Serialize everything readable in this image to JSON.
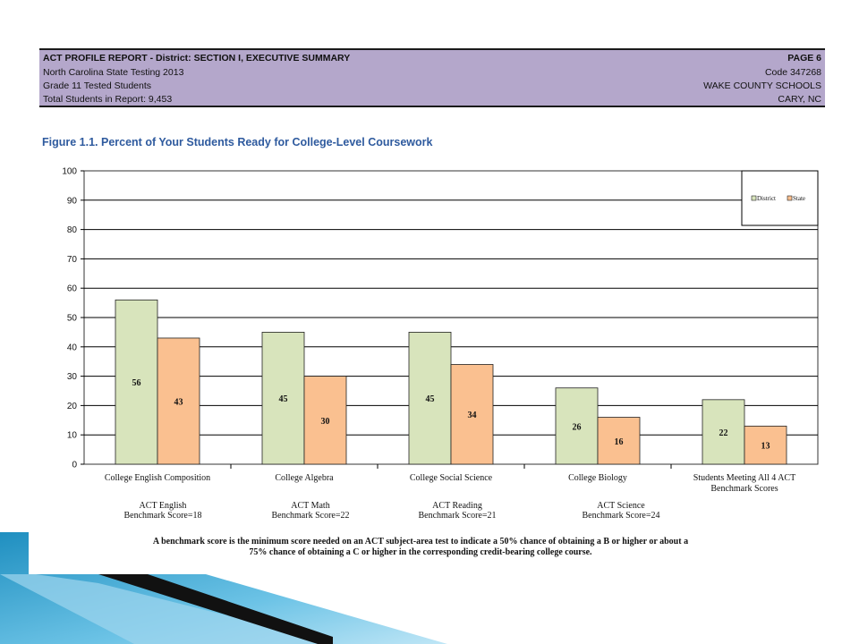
{
  "header": {
    "rows": [
      {
        "left": "ACT PROFILE REPORT - District:  SECTION I, EXECUTIVE SUMMARY",
        "right": "PAGE 6"
      },
      {
        "left": "North Carolina State Testing 2013",
        "right": "Code 347268"
      },
      {
        "left": "Grade 11 Tested Students",
        "right": "WAKE COUNTY SCHOOLS"
      },
      {
        "left": "Total Students in Report: 9,453",
        "right": "CARY, NC"
      }
    ]
  },
  "figure_title": "Figure 1.1.  Percent of Your Students Ready for College-Level Coursework",
  "chart_data": {
    "type": "bar",
    "categories": [
      "College English Composition",
      "College Algebra",
      "College Social Science",
      "College Biology",
      "Students Meeting All 4 ACT Benchmark Scores"
    ],
    "series": [
      {
        "name": "District",
        "values": [
          56,
          45,
          45,
          26,
          22
        ],
        "color": "#d8e4bc"
      },
      {
        "name": "State",
        "values": [
          43,
          30,
          34,
          16,
          13
        ],
        "color": "#fac090"
      }
    ],
    "ylim": [
      0,
      100
    ],
    "yticks": [
      0,
      10,
      20,
      30,
      40,
      50,
      60,
      70,
      80,
      90,
      100
    ],
    "grid": true,
    "legend": "top-right",
    "title": "",
    "xlabel": "",
    "ylabel": ""
  },
  "benchmarks": [
    {
      "line1": "ACT English",
      "line2": "Benchmark Score=18"
    },
    {
      "line1": "ACT Math",
      "line2": "Benchmark Score=22"
    },
    {
      "line1": "ACT Reading",
      "line2": "Benchmark Score=21"
    },
    {
      "line1": "ACT Science",
      "line2": "Benchmark Score=24"
    }
  ],
  "footnote": {
    "line1": "A benchmark score is the minimum score needed on an ACT subject-area test to indicate a 50% chance of obtaining a B or higher or about a",
    "line2": "75% chance of obtaining a C or higher in the corresponding credit-bearing college course."
  }
}
